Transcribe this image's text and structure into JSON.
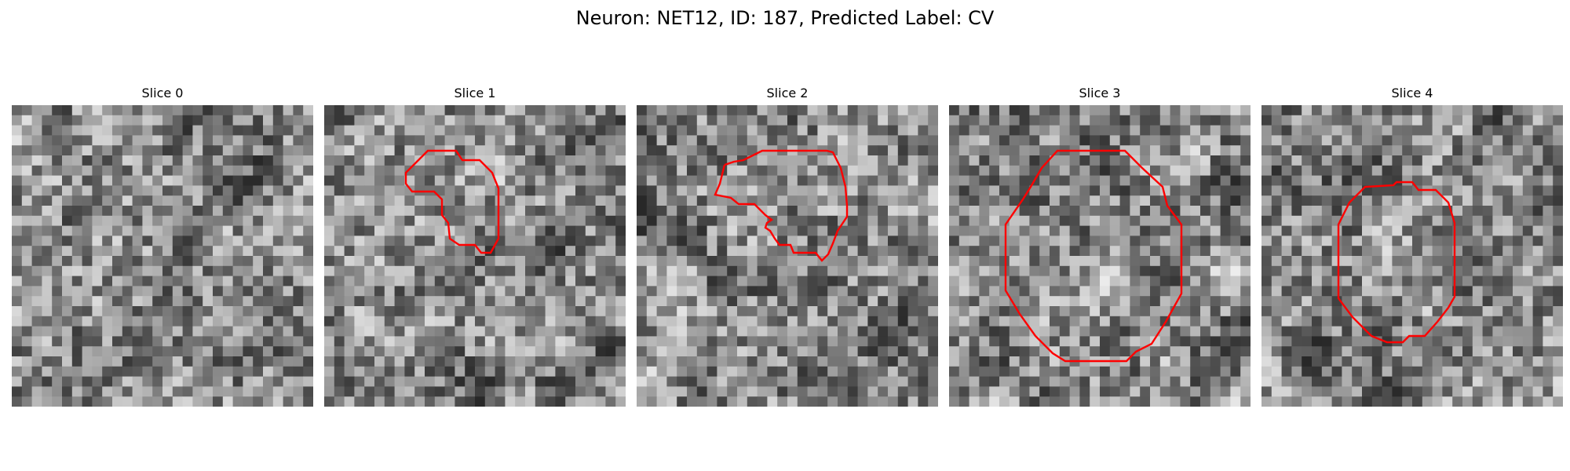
{
  "figure": {
    "title": "Neuron: NET12, ID: 187, Predicted Label: CV"
  },
  "image": {
    "grid_size": 30,
    "contour_color": "#ff0000",
    "colormap": "grayscale",
    "slices": [
      {
        "label": "Slice 0",
        "has_contour": false
      },
      {
        "label": "Slice 1",
        "has_contour": true
      },
      {
        "label": "Slice 2",
        "has_contour": true
      },
      {
        "label": "Slice 3",
        "has_contour": true
      },
      {
        "label": "Slice 4",
        "has_contour": true
      }
    ]
  }
}
